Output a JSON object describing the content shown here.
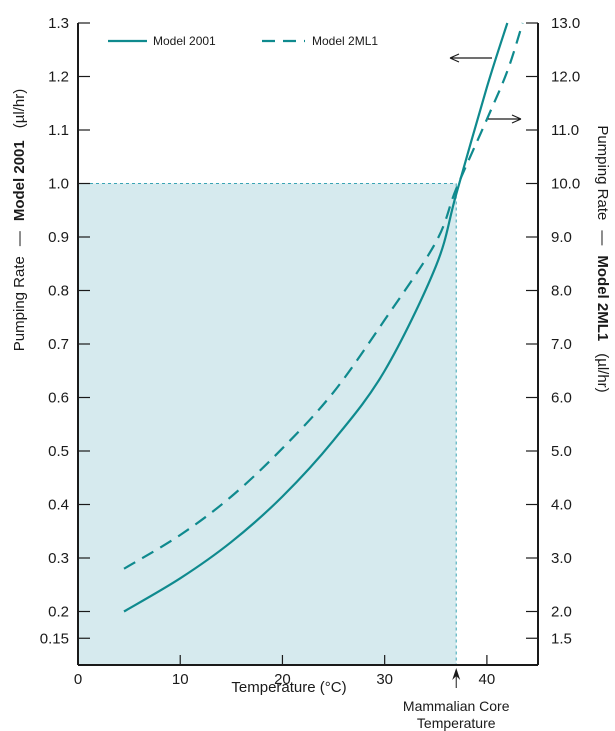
{
  "chart_data": {
    "type": "line",
    "xlabel": "Temperature (°C)",
    "xlim": [
      0,
      45
    ],
    "x_ticks": [
      "0",
      "10",
      "20",
      "30",
      "40"
    ],
    "left_axis": {
      "label_prefix": "Pumping Rate",
      "label_model": "Model 2001",
      "label_unit": "(µl/hr)",
      "ylim": [
        0.1,
        1.3
      ],
      "ticks": [
        "0.15",
        "0.2",
        "0.3",
        "0.4",
        "0.5",
        "0.6",
        "0.7",
        "0.8",
        "0.9",
        "1.0",
        "1.1",
        "1.2",
        "1.3"
      ]
    },
    "right_axis": {
      "label_prefix": "Pumping Rate",
      "label_model": "Model 2ML1",
      "label_unit": "(µl/hr)",
      "ylim": [
        1.0,
        13.0
      ],
      "ticks": [
        "1.5",
        "2.0",
        "3.0",
        "4.0",
        "5.0",
        "6.0",
        "7.0",
        "8.0",
        "9.0",
        "10.0",
        "11.0",
        "12.0",
        "13.0"
      ]
    },
    "series": [
      {
        "name": "Model 2001",
        "axis": "left",
        "style": "solid",
        "x": [
          4.5,
          10,
          15,
          20,
          25,
          30,
          35,
          37,
          40,
          42
        ],
        "y": [
          0.2,
          0.262,
          0.33,
          0.415,
          0.52,
          0.65,
          0.845,
          0.98,
          1.18,
          1.3
        ]
      },
      {
        "name": "Model 2ML1",
        "axis": "right",
        "style": "dashed",
        "x": [
          4.5,
          10,
          15,
          20,
          25,
          30,
          35,
          37,
          40,
          42,
          43.5
        ],
        "y": [
          2.8,
          3.43,
          4.15,
          5.05,
          6.1,
          7.45,
          8.9,
          9.9,
          11.2,
          12.1,
          13.0
        ]
      }
    ],
    "highlight_region": {
      "x": [
        0,
        37
      ],
      "y": [
        0.1,
        1.0
      ],
      "color": "#d6eaee"
    },
    "annotation": {
      "x": 37,
      "line1": "Mammalian Core",
      "line2": "Temperature"
    },
    "colors": {
      "line": "#0f8a8e",
      "region": "#d6eaee",
      "reference": "#3aa4b4",
      "axis": "#1a1a1a"
    }
  }
}
